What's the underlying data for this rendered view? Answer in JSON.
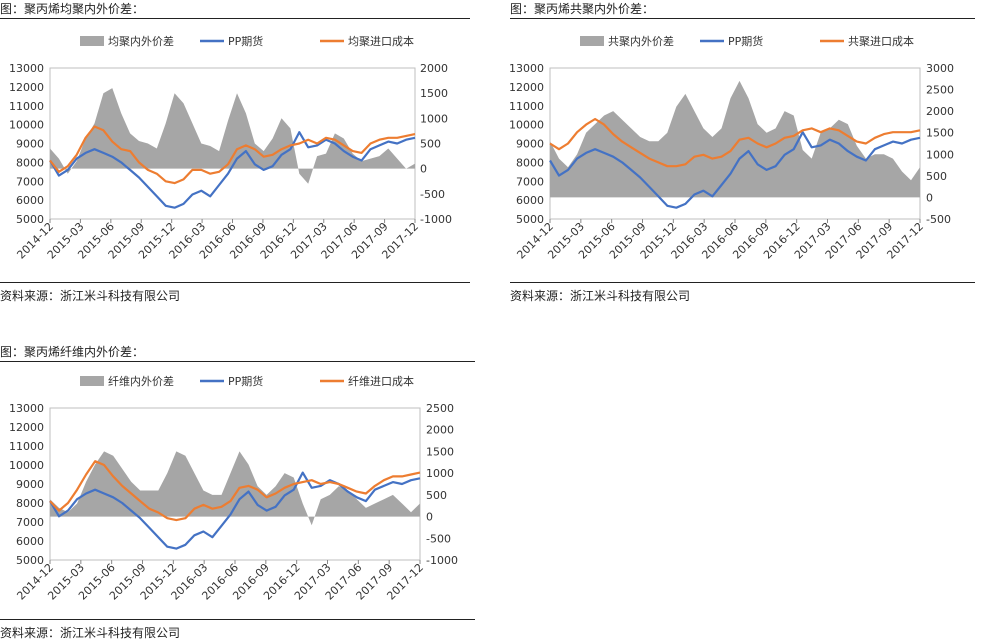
{
  "panels": [
    {
      "title": "图：聚丙烯均聚内外价差：",
      "source": "资料来源：浙江米斗科技有限公司",
      "chart_data": {
        "type": "area+line",
        "legend": [
          "均聚内外价差",
          "PP期货",
          "均聚进口成本"
        ],
        "legend_position": "top",
        "x_labels": [
          "2014-12",
          "2015-03",
          "2015-06",
          "2015-09",
          "2015-12",
          "2016-03",
          "2016-06",
          "2016-09",
          "2016-12",
          "2017-03",
          "2017-06",
          "2017-09",
          "2017-12"
        ],
        "y_left": {
          "min": 5000,
          "max": 13000,
          "ticks": [
            5000,
            6000,
            7000,
            8000,
            9000,
            10000,
            11000,
            12000,
            13000
          ]
        },
        "y_right": {
          "min": -1000,
          "max": 2000,
          "ticks": [
            -1000,
            -500,
            0,
            500,
            1000,
            1500,
            2000
          ]
        },
        "series": [
          {
            "name": "均聚内外价差",
            "axis": "right",
            "color": "#a6a6a6",
            "values": [
              400,
              200,
              -100,
              150,
              600,
              900,
              1500,
              1600,
              1100,
              700,
              550,
              500,
              400,
              900,
              1500,
              1300,
              900,
              500,
              450,
              350,
              950,
              1500,
              1100,
              500,
              350,
              600,
              1000,
              800,
              -100,
              -300,
              250,
              300,
              700,
              600,
              300,
              150,
              200,
              250,
              400,
              200,
              0,
              100
            ]
          },
          {
            "name": "PP期货",
            "axis": "left",
            "color": "#4472c4",
            "values": [
              8100,
              7300,
              7600,
              8200,
              8500,
              8700,
              8500,
              8300,
              8000,
              7600,
              7200,
              6700,
              6200,
              5700,
              5600,
              5800,
              6300,
              6500,
              6200,
              6800,
              7400,
              8200,
              8600,
              7900,
              7600,
              7800,
              8400,
              8700,
              9600,
              8800,
              8900,
              9200,
              9000,
              8600,
              8300,
              8100,
              8700,
              8900,
              9100,
              9000,
              9200,
              9300
            ]
          },
          {
            "name": "均聚进口成本",
            "axis": "left",
            "color": "#ed7d31",
            "values": [
              8100,
              7500,
              7800,
              8400,
              9300,
              9900,
              9700,
              9100,
              8700,
              8600,
              8000,
              7600,
              7400,
              7000,
              6900,
              7100,
              7600,
              7600,
              7400,
              7500,
              7900,
              8700,
              8900,
              8700,
              8300,
              8400,
              8700,
              8900,
              9000,
              9200,
              9000,
              9300,
              9200,
              8900,
              8600,
              8500,
              9000,
              9200,
              9300,
              9300,
              9400,
              9500
            ]
          }
        ]
      }
    },
    {
      "title": "图：聚丙烯共聚内外价差：",
      "source": "资料来源：浙江米斗科技有限公司",
      "chart_data": {
        "type": "area+line",
        "legend": [
          "共聚内外价差",
          "PP期货",
          "共聚进口成本"
        ],
        "legend_position": "top",
        "x_labels": [
          "2014-12",
          "2015-03",
          "2015-06",
          "2015-09",
          "2015-12",
          "2016-03",
          "2016-06",
          "2016-09",
          "2016-12",
          "2017-03",
          "2017-06",
          "2017-09",
          "2017-12"
        ],
        "y_left": {
          "min": 5000,
          "max": 13000,
          "ticks": [
            5000,
            6000,
            7000,
            8000,
            9000,
            10000,
            11000,
            12000,
            13000
          ]
        },
        "y_right": {
          "min": -500,
          "max": 3000,
          "ticks": [
            -500,
            0,
            500,
            1000,
            1500,
            2000,
            2500,
            3000
          ]
        },
        "series": [
          {
            "name": "共聚内外价差",
            "axis": "right",
            "color": "#a6a6a6",
            "values": [
              1300,
              900,
              700,
              1000,
              1500,
              1700,
              1900,
              2000,
              1800,
              1600,
              1400,
              1300,
              1300,
              1500,
              2100,
              2400,
              2000,
              1600,
              1400,
              1600,
              2300,
              2700,
              2300,
              1700,
              1500,
              1600,
              2000,
              1900,
              1100,
              900,
              1500,
              1600,
              1800,
              1700,
              1200,
              900,
              1000,
              1000,
              900,
              600,
              400,
              700
            ]
          },
          {
            "name": "PP期货",
            "axis": "left",
            "color": "#4472c4",
            "values": [
              8100,
              7300,
              7600,
              8200,
              8500,
              8700,
              8500,
              8300,
              8000,
              7600,
              7200,
              6700,
              6200,
              5700,
              5600,
              5800,
              6300,
              6500,
              6200,
              6800,
              7400,
              8200,
              8600,
              7900,
              7600,
              7800,
              8400,
              8700,
              9600,
              8800,
              8900,
              9200,
              9000,
              8600,
              8300,
              8100,
              8700,
              8900,
              9100,
              9000,
              9200,
              9300
            ]
          },
          {
            "name": "共聚进口成本",
            "axis": "left",
            "color": "#ed7d31",
            "values": [
              9000,
              8700,
              9000,
              9600,
              10000,
              10300,
              10000,
              9500,
              9100,
              8800,
              8500,
              8200,
              8000,
              7800,
              7800,
              7900,
              8300,
              8400,
              8200,
              8300,
              8600,
              9200,
              9300,
              9000,
              8800,
              9000,
              9300,
              9400,
              9700,
              9800,
              9600,
              9800,
              9700,
              9400,
              9100,
              9000,
              9300,
              9500,
              9600,
              9600,
              9600,
              9700
            ]
          }
        ]
      }
    },
    {
      "title": "图：聚丙烯纤维内外价差：",
      "source": "资料来源：浙江米斗科技有限公司",
      "chart_data": {
        "type": "area+line",
        "legend": [
          "纤维内外价差",
          "PP期货",
          "纤维进口成本"
        ],
        "legend_position": "top",
        "x_labels": [
          "2014-12",
          "2015-03",
          "2015-06",
          "2015-09",
          "2015-12",
          "2016-03",
          "2016-06",
          "2016-09",
          "2016-12",
          "2017-03",
          "2017-06",
          "2017-09",
          "2017-12"
        ],
        "y_left": {
          "min": 5000,
          "max": 13000,
          "ticks": [
            5000,
            6000,
            7000,
            8000,
            9000,
            10000,
            11000,
            12000,
            13000
          ]
        },
        "y_right": {
          "min": -1000,
          "max": 2500,
          "ticks": [
            -1000,
            -500,
            0,
            500,
            1000,
            1500,
            2000,
            2500
          ]
        },
        "series": [
          {
            "name": "纤维内外价差",
            "axis": "right",
            "color": "#a6a6a6",
            "values": [
              400,
              200,
              100,
              300,
              800,
              1200,
              1500,
              1400,
              1100,
              800,
              600,
              600,
              600,
              1000,
              1500,
              1400,
              1000,
              600,
              500,
              500,
              1000,
              1500,
              1200,
              700,
              500,
              700,
              1000,
              900,
              300,
              -200,
              400,
              500,
              700,
              600,
              400,
              200,
              300,
              400,
              500,
              300,
              100,
              300
            ]
          },
          {
            "name": "PP期货",
            "axis": "left",
            "color": "#4472c4",
            "values": [
              8100,
              7300,
              7600,
              8200,
              8500,
              8700,
              8500,
              8300,
              8000,
              7600,
              7200,
              6700,
              6200,
              5700,
              5600,
              5800,
              6300,
              6500,
              6200,
              6800,
              7400,
              8200,
              8600,
              7900,
              7600,
              7800,
              8400,
              8700,
              9600,
              8800,
              8900,
              9200,
              9000,
              8600,
              8300,
              8100,
              8700,
              8900,
              9100,
              9000,
              9200,
              9300
            ]
          },
          {
            "name": "纤维进口成本",
            "axis": "left",
            "color": "#ed7d31",
            "values": [
              8100,
              7600,
              8000,
              8700,
              9500,
              10200,
              10000,
              9400,
              8900,
              8500,
              8100,
              7700,
              7500,
              7200,
              7100,
              7200,
              7700,
              7900,
              7700,
              7800,
              8100,
              8800,
              8900,
              8700,
              8300,
              8500,
              8800,
              9000,
              9100,
              9200,
              9000,
              9100,
              9000,
              8800,
              8600,
              8500,
              8900,
              9200,
              9400,
              9400,
              9500,
              9600
            ]
          }
        ]
      }
    }
  ]
}
